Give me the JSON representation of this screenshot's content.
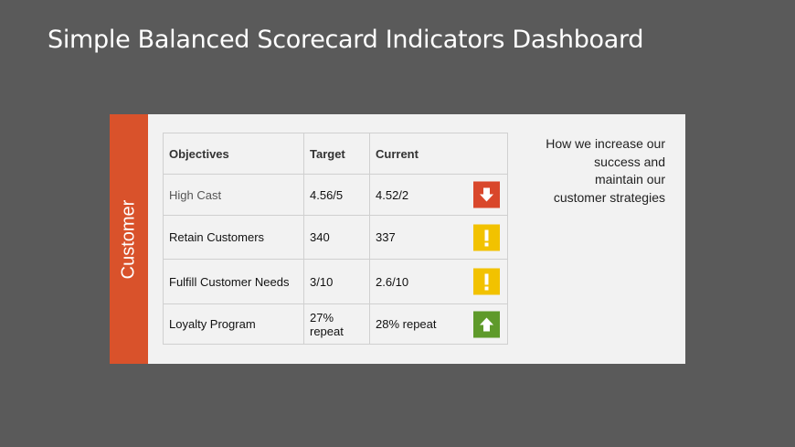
{
  "header": {
    "title": "Simple Balanced Scorecard Indicators Dashboard"
  },
  "sidebar_label": "Customer",
  "table": {
    "columns": [
      "Objectives",
      "Target",
      "Current"
    ],
    "rows": [
      [
        "High Cast",
        "4.56/5",
        "4.52/2"
      ],
      [
        "Retain Customers",
        "340",
        "337"
      ],
      [
        "Fulfill Customer Needs",
        "3/10",
        "2.6/10"
      ],
      [
        "Loyalty Program",
        "27% repeat",
        "28% repeat"
      ]
    ]
  },
  "description": [
    "How we increase our",
    "success and",
    "maintain our",
    "customer strategies"
  ]
}
